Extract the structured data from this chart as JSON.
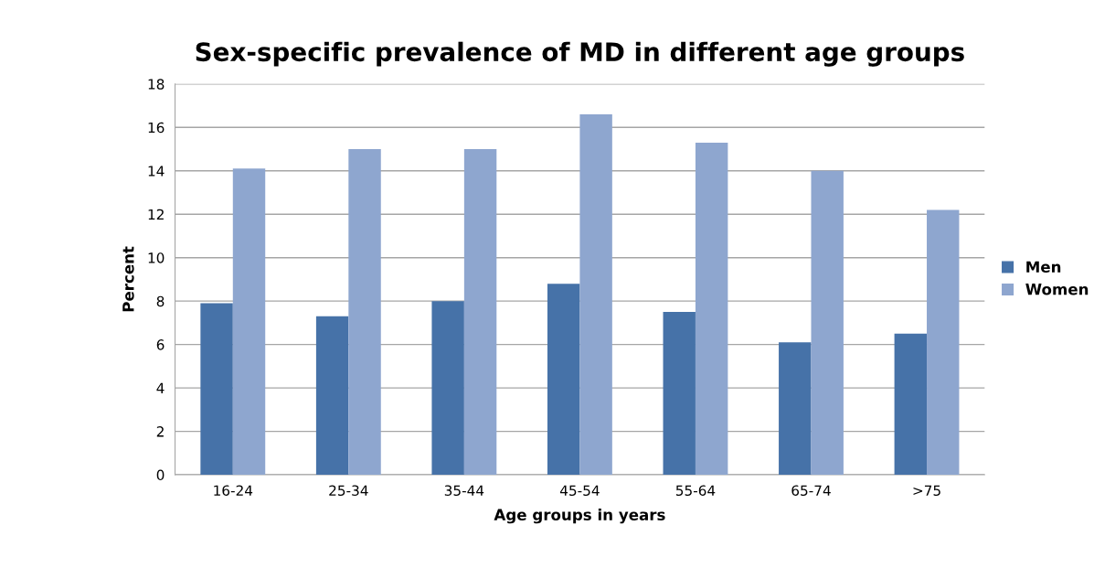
{
  "chart_data": {
    "type": "bar",
    "title": "Sex-specific prevalence of MD in different age groups",
    "xlabel": "Age groups in years",
    "ylabel": "Percent",
    "categories": [
      "16-24",
      "25-34",
      "35-44",
      "45-54",
      "55-64",
      "65-74",
      ">75"
    ],
    "series": [
      {
        "name": "Men",
        "color": "#4672a8",
        "values": [
          7.9,
          7.3,
          8.0,
          8.8,
          7.5,
          6.1,
          6.5
        ]
      },
      {
        "name": "Women",
        "color": "#8ea6cf",
        "values": [
          14.1,
          15.0,
          15.0,
          16.6,
          15.3,
          14.0,
          12.2
        ]
      }
    ],
    "ylim": [
      0,
      18
    ],
    "yticks": [
      0,
      2,
      4,
      6,
      8,
      10,
      12,
      14,
      16,
      18
    ],
    "grid": "y",
    "legend": "right"
  }
}
